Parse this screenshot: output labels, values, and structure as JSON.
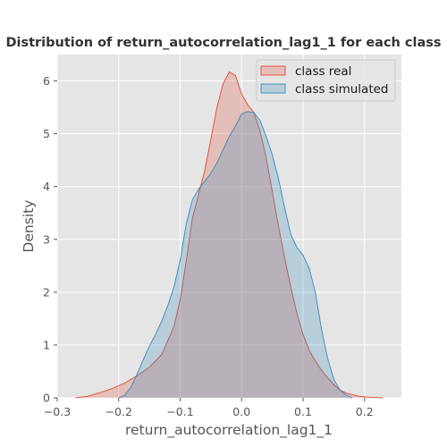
{
  "chart_data": {
    "type": "area",
    "title": "Distribution of return_autocorrelation_lag1_1 for each class",
    "xlabel": "return_autocorrelation_lag1_1",
    "ylabel": "Density",
    "xlim": [
      -0.3,
      0.26
    ],
    "ylim": [
      0,
      6.5
    ],
    "xticks": [
      -0.3,
      -0.2,
      -0.1,
      0.0,
      0.1,
      0.2
    ],
    "xtick_labels": [
      "−0.3",
      "−0.2",
      "−0.1",
      "0.0",
      "0.1",
      "0.2"
    ],
    "yticks": [
      0,
      1,
      2,
      3,
      4,
      5,
      6
    ],
    "ytick_labels": [
      "0",
      "1",
      "2",
      "3",
      "4",
      "5",
      "6"
    ],
    "grid": true,
    "legend_position": "top-right",
    "series": [
      {
        "name": "class real",
        "color": "#E24A33",
        "x": [
          -0.27,
          -0.25,
          -0.23,
          -0.21,
          -0.19,
          -0.17,
          -0.15,
          -0.13,
          -0.11,
          -0.1,
          -0.09,
          -0.08,
          -0.07,
          -0.06,
          -0.05,
          -0.04,
          -0.03,
          -0.02,
          -0.01,
          0.0,
          0.01,
          0.02,
          0.03,
          0.04,
          0.05,
          0.06,
          0.07,
          0.08,
          0.09,
          0.1,
          0.11,
          0.12,
          0.13,
          0.14,
          0.15,
          0.16,
          0.17,
          0.19,
          0.21,
          0.23
        ],
        "y": [
          0.0,
          0.03,
          0.1,
          0.18,
          0.28,
          0.42,
          0.58,
          0.82,
          1.35,
          1.85,
          2.6,
          3.4,
          3.85,
          4.3,
          4.9,
          5.5,
          5.95,
          6.17,
          6.1,
          5.75,
          5.55,
          5.4,
          5.05,
          4.55,
          3.9,
          3.25,
          2.65,
          2.1,
          1.6,
          1.2,
          0.9,
          0.7,
          0.52,
          0.38,
          0.25,
          0.15,
          0.09,
          0.03,
          0.01,
          0.0
        ]
      },
      {
        "name": "class simulated",
        "color": "#348ABD",
        "x": [
          -0.2,
          -0.19,
          -0.18,
          -0.17,
          -0.16,
          -0.15,
          -0.14,
          -0.13,
          -0.12,
          -0.11,
          -0.1,
          -0.09,
          -0.08,
          -0.07,
          -0.06,
          -0.05,
          -0.04,
          -0.03,
          -0.02,
          -0.01,
          0.0,
          0.01,
          0.02,
          0.03,
          0.04,
          0.05,
          0.06,
          0.07,
          0.08,
          0.09,
          0.1,
          0.11,
          0.12,
          0.13,
          0.14,
          0.15,
          0.16,
          0.17,
          0.18
        ],
        "y": [
          0.0,
          0.05,
          0.2,
          0.45,
          0.72,
          0.98,
          1.2,
          1.45,
          1.75,
          2.1,
          2.6,
          3.3,
          3.75,
          3.95,
          4.1,
          4.25,
          4.45,
          4.7,
          4.95,
          5.15,
          5.38,
          5.42,
          5.4,
          5.25,
          4.95,
          4.6,
          4.15,
          3.6,
          3.1,
          2.85,
          2.7,
          2.45,
          2.0,
          1.3,
          0.75,
          0.35,
          0.15,
          0.05,
          0.0
        ]
      }
    ]
  }
}
